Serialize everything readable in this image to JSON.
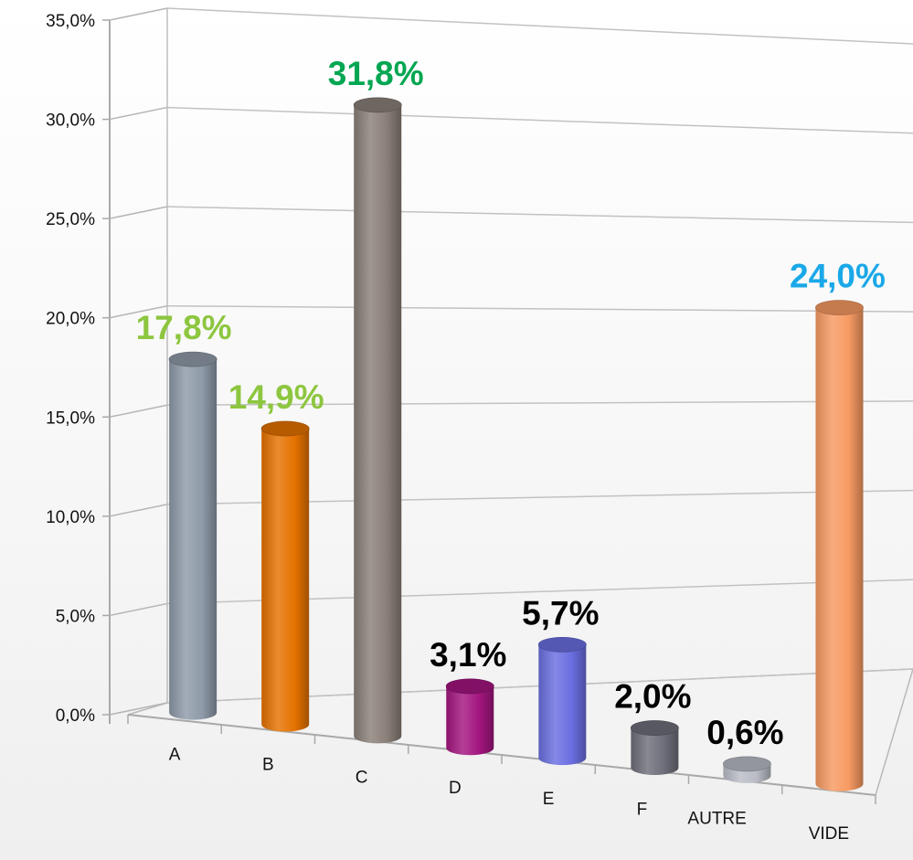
{
  "chart_data": {
    "type": "bar",
    "style": "3d-cylinder",
    "categories": [
      "A",
      "B",
      "C",
      "D",
      "E",
      "F",
      "AUTRE",
      "VIDE"
    ],
    "values": [
      17.8,
      14.9,
      31.8,
      3.1,
      5.7,
      2.0,
      0.6,
      24.0
    ],
    "data_labels": [
      "17,8%",
      "14,9%",
      "31,8%",
      "3,1%",
      "5,7%",
      "2,0%",
      "0,6%",
      "24,0%"
    ],
    "bar_colors": [
      "#8e9aa8",
      "#e57200",
      "#8a7f78",
      "#a3157f",
      "#6a6ee0",
      "#6e6e7a",
      "#b9bcc6",
      "#f79a62"
    ],
    "label_colors": [
      "#8dc63f",
      "#8dc63f",
      "#00a651",
      "#000000",
      "#000000",
      "#000000",
      "#000000",
      "#1aa8e8"
    ],
    "y_ticks": [
      "0,0%",
      "5,0%",
      "10,0%",
      "15,0%",
      "20,0%",
      "25,0%",
      "30,0%",
      "35,0%"
    ],
    "ylim": [
      0,
      35
    ],
    "grid": true,
    "legend": "none",
    "title": "",
    "xlabel": "",
    "ylabel": ""
  }
}
